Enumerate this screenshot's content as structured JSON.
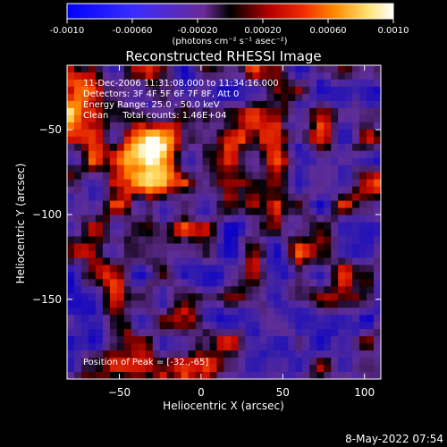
{
  "colorbar": {
    "tick_labels": [
      "-0.0010",
      "-0.00060",
      "-0.00020",
      "0.00020",
      "0.00060",
      "0.0010"
    ],
    "tick_values": [
      -0.001,
      -0.0006,
      -0.0002,
      0.0002,
      0.0006,
      0.001
    ],
    "range": [
      -0.001,
      0.001
    ],
    "unit_label": "(photons cm⁻² s⁻¹ asec⁻²)"
  },
  "chart_data": {
    "type": "heatmap",
    "title": "Reconstructed RHESSI Image",
    "xlabel": "Heliocentric X (arcsec)",
    "ylabel": "Heliocentric Y (arcsec)",
    "xlim": [
      -82,
      110
    ],
    "ylim": [
      -197,
      -12
    ],
    "x_ticks": [
      -50,
      0,
      50,
      100
    ],
    "x_tick_labels": [
      "−50",
      "0",
      "50",
      "100"
    ],
    "y_ticks": [
      -150,
      -100,
      -50
    ],
    "y_tick_labels": [
      "−150",
      "−100",
      "−50"
    ],
    "colormap": "blue-purple-black-red-orange-yellow-white",
    "annotations": {
      "time_range": "11-Dec-2006 11:31:08.000 to 11:34:16.000",
      "detectors": "Detectors: 3F 4F 5F 6F 7F 8F, Att 0",
      "energy_range": "Energy Range: 25.0 - 50.0 keV",
      "method": "Clean     Total counts: 1.46E+04",
      "peak_position": "Position of Peak = [-32.,-65]"
    },
    "peak": {
      "x": -32,
      "y": -65
    }
  },
  "footer": {
    "timestamp": "8-May-2022 07:54"
  },
  "colors": {
    "background": "#000000",
    "foreground": "#ffffff"
  }
}
